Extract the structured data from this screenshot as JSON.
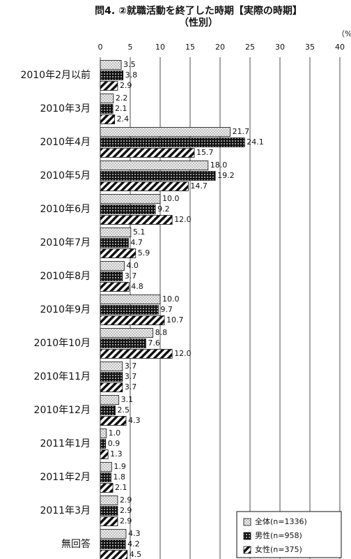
{
  "chart_data": {
    "type": "hbar",
    "title": "問4. ②就職活動を終了した時期【実際の時期】",
    "subtitle": "（性別）",
    "unit_label": "（%",
    "categories": [
      "2010年2月以前",
      "2010年3月",
      "2010年4月",
      "2010年5月",
      "2010年6月",
      "2010年7月",
      "2010年8月",
      "2010年9月",
      "2010年10月",
      "2010年11月",
      "2010年12月",
      "2011年1月",
      "2011年2月",
      "2011年3月",
      "無回答"
    ],
    "series": [
      {
        "name": "全体(n=1336)",
        "color": "#bbbbbb",
        "values": [
          3.5,
          2.2,
          21.7,
          18.0,
          10.0,
          5.1,
          4.0,
          10.0,
          8.8,
          3.7,
          3.1,
          1.0,
          1.9,
          2.9,
          4.3
        ],
        "value_labels": [
          "3.5",
          "2.2",
          "21.7",
          "18.0",
          "10.0",
          "5.1",
          "4.0",
          "10.0",
          "8.8",
          "3.7",
          "3.1",
          "1.0",
          "1.9",
          "2.9",
          "4.3"
        ]
      },
      {
        "name": "男性(n=958)",
        "color": "#111111",
        "values": [
          3.8,
          2.1,
          24.1,
          19.2,
          9.2,
          4.7,
          3.7,
          9.7,
          7.6,
          3.7,
          2.5,
          0.9,
          1.8,
          2.9,
          4.2
        ],
        "value_labels": [
          "3.8",
          "2.1",
          "24.1",
          "19.2",
          "9.2",
          "4.7",
          "3.7",
          "9.7",
          "7.6",
          "3.7",
          "2.5",
          "0.9",
          "1.8",
          "2.9",
          "4.2"
        ]
      },
      {
        "name": "女性(n=375)",
        "color": "#ffffff",
        "values": [
          2.9,
          2.4,
          15.7,
          14.7,
          12.0,
          5.9,
          4.8,
          10.7,
          12.0,
          3.7,
          4.3,
          1.3,
          2.1,
          2.9,
          4.5
        ],
        "value_labels": [
          "2.9",
          "2.4",
          "15.7",
          "14.7",
          "12.0",
          "5.9",
          "4.8",
          "10.7",
          "12.0",
          "3.7",
          "4.3",
          "1.3",
          "2.1",
          "2.9",
          "4.5"
        ]
      }
    ],
    "xlim": [
      0,
      40
    ],
    "xticks": [
      0,
      5,
      10,
      15,
      20,
      25,
      30,
      35,
      40
    ],
    "grid": true,
    "legend": "lower right"
  }
}
